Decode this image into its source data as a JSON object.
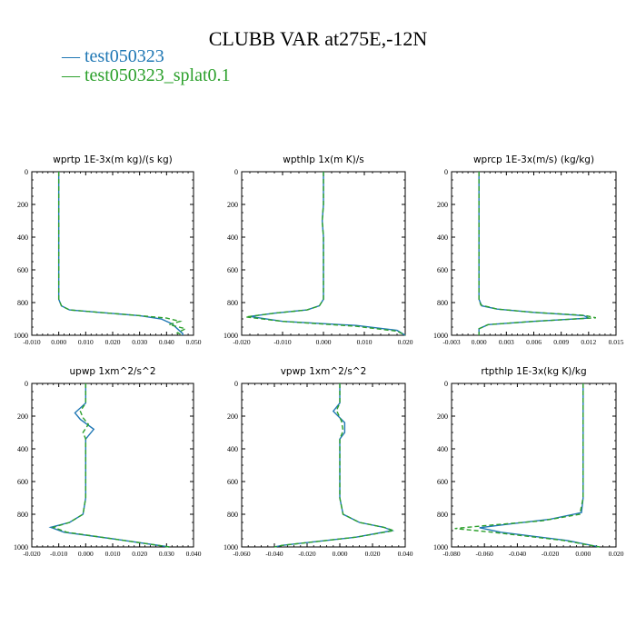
{
  "header": {
    "title": "CLUBB VAR at275E,-12N"
  },
  "legend": [
    {
      "label": "test050323",
      "color": "#1f77b4",
      "dash": "solid"
    },
    {
      "label": "test050323_splat0.1",
      "color": "#2ca02c",
      "dash": "dashed"
    }
  ],
  "chart_data": [
    {
      "type": "line",
      "title": "wprtp  1E-3x(m kg)/(s kg)",
      "xlim": [
        -0.01,
        0.05
      ],
      "xticks": [
        "-0.010",
        "0.000",
        "0.010",
        "0.020",
        "0.030",
        "0.040",
        "0.050"
      ],
      "ylim": [
        1000,
        0
      ],
      "yticks": [
        "0",
        "200",
        "400",
        "600",
        "800",
        "1000"
      ],
      "series": [
        {
          "name": "test050323",
          "points": [
            [
              0,
              0
            ],
            [
              0,
              300
            ],
            [
              0,
              600
            ],
            [
              0,
              780
            ],
            [
              0.001,
              820
            ],
            [
              0.004,
              845
            ],
            [
              0.015,
              860
            ],
            [
              0.03,
              880
            ],
            [
              0.038,
              900
            ],
            [
              0.042,
              930
            ],
            [
              0.044,
              960
            ],
            [
              0.046,
              990
            ],
            [
              0.046,
              1000
            ]
          ]
        },
        {
          "name": "test050323_splat0.1",
          "points": [
            [
              0,
              0
            ],
            [
              0,
              300
            ],
            [
              0,
              600
            ],
            [
              0,
              780
            ],
            [
              0.001,
              820
            ],
            [
              0.004,
              845
            ],
            [
              0.015,
              860
            ],
            [
              0.03,
              880
            ],
            [
              0.04,
              895
            ],
            [
              0.045,
              915
            ],
            [
              0.041,
              935
            ],
            [
              0.047,
              960
            ],
            [
              0.044,
              985
            ],
            [
              0.046,
              1000
            ]
          ]
        }
      ]
    },
    {
      "type": "line",
      "title": "wpthlp  1x(m K)/s",
      "xlim": [
        -0.02,
        0.02
      ],
      "xticks": [
        "-0.020",
        "-0.010",
        "0.000",
        "0.010",
        "0.020"
      ],
      "ylim": [
        1000,
        0
      ],
      "yticks": [
        "0",
        "200",
        "400",
        "600",
        "800",
        "1000"
      ],
      "series": [
        {
          "name": "test050323",
          "points": [
            [
              0,
              0
            ],
            [
              0,
              200
            ],
            [
              -0.0003,
              300
            ],
            [
              0,
              400
            ],
            [
              0,
              600
            ],
            [
              0,
              780
            ],
            [
              -0.001,
              820
            ],
            [
              -0.004,
              845
            ],
            [
              -0.012,
              865
            ],
            [
              -0.018,
              885
            ],
            [
              -0.01,
              915
            ],
            [
              0.008,
              940
            ],
            [
              0.018,
              970
            ],
            [
              0.02,
              1000
            ]
          ]
        },
        {
          "name": "test050323_splat0.1",
          "points": [
            [
              0,
              0
            ],
            [
              0,
              200
            ],
            [
              -0.0003,
              300
            ],
            [
              0,
              400
            ],
            [
              0,
              600
            ],
            [
              0,
              780
            ],
            [
              -0.001,
              820
            ],
            [
              -0.004,
              845
            ],
            [
              -0.012,
              865
            ],
            [
              -0.019,
              888
            ],
            [
              -0.01,
              915
            ],
            [
              0.008,
              945
            ],
            [
              0.018,
              975
            ],
            [
              0.02,
              1000
            ]
          ]
        }
      ]
    },
    {
      "type": "line",
      "title": "wprcp  1E-3x(m/s) (kg/kg)",
      "xlim": [
        -0.003,
        0.015
      ],
      "xticks": [
        "-0.003",
        "0.000",
        "0.003",
        "0.006",
        "0.009",
        "0.012",
        "0.015"
      ],
      "ylim": [
        1000,
        0
      ],
      "yticks": [
        "0",
        "200",
        "400",
        "600",
        "800",
        "1000"
      ],
      "series": [
        {
          "name": "test050323",
          "points": [
            [
              0,
              0
            ],
            [
              0,
              400
            ],
            [
              0,
              780
            ],
            [
              0.0003,
              820
            ],
            [
              0.002,
              840
            ],
            [
              0.006,
              860
            ],
            [
              0.0115,
              880
            ],
            [
              0.012,
              895
            ],
            [
              0.006,
              915
            ],
            [
              0.001,
              935
            ],
            [
              0,
              960
            ],
            [
              0,
              1000
            ]
          ]
        },
        {
          "name": "test050323_splat0.1",
          "points": [
            [
              0,
              0
            ],
            [
              0,
              400
            ],
            [
              0,
              780
            ],
            [
              0.0002,
              815
            ],
            [
              0.002,
              840
            ],
            [
              0.006,
              860
            ],
            [
              0.0115,
              878
            ],
            [
              0.0128,
              893
            ],
            [
              0.006,
              915
            ],
            [
              0.001,
              935
            ],
            [
              0,
              960
            ],
            [
              0,
              1000
            ]
          ]
        }
      ]
    },
    {
      "type": "line",
      "title": "upwp  1xm^2/s^2",
      "xlim": [
        -0.02,
        0.04
      ],
      "xticks": [
        "-0.020",
        "-0.010",
        "0.000",
        "0.010",
        "0.020",
        "0.030",
        "0.040"
      ],
      "ylim": [
        1000,
        0
      ],
      "yticks": [
        "0",
        "200",
        "400",
        "600",
        "800",
        "1000"
      ],
      "series": [
        {
          "name": "test050323",
          "points": [
            [
              0,
              0
            ],
            [
              0,
              120
            ],
            [
              -0.004,
              180
            ],
            [
              -0.002,
              220
            ],
            [
              0.003,
              280
            ],
            [
              0,
              340
            ],
            [
              0,
              500
            ],
            [
              0,
              700
            ],
            [
              -0.001,
              800
            ],
            [
              -0.006,
              850
            ],
            [
              -0.013,
              880
            ],
            [
              -0.008,
              910
            ],
            [
              0.01,
              950
            ],
            [
              0.031,
              1000
            ]
          ]
        },
        {
          "name": "test050323_splat0.1",
          "points": [
            [
              0,
              0
            ],
            [
              0,
              120
            ],
            [
              -0.002,
              170
            ],
            [
              -0.001,
              210
            ],
            [
              0.001,
              250
            ],
            [
              -0.001,
              300
            ],
            [
              0,
              340
            ],
            [
              0,
              500
            ],
            [
              0,
              700
            ],
            [
              -0.001,
              800
            ],
            [
              -0.006,
              850
            ],
            [
              -0.012,
              880
            ],
            [
              -0.007,
              910
            ],
            [
              0.01,
              950
            ],
            [
              0.031,
              1000
            ]
          ]
        }
      ]
    },
    {
      "type": "line",
      "title": "vpwp  1xm^2/s^2",
      "xlim": [
        -0.06,
        0.04
      ],
      "xticks": [
        "-0.060",
        "-0.040",
        "-0.020",
        "0.000",
        "0.020",
        "0.040"
      ],
      "ylim": [
        1000,
        0
      ],
      "yticks": [
        "0",
        "200",
        "400",
        "600",
        "800",
        "1000"
      ],
      "series": [
        {
          "name": "test050323",
          "points": [
            [
              0,
              0
            ],
            [
              0,
              120
            ],
            [
              -0.004,
              170
            ],
            [
              0.003,
              240
            ],
            [
              0.003,
              300
            ],
            [
              0,
              340
            ],
            [
              0,
              500
            ],
            [
              0,
              700
            ],
            [
              0.002,
              800
            ],
            [
              0.012,
              850
            ],
            [
              0.027,
              880
            ],
            [
              0.032,
              900
            ],
            [
              0.01,
              940
            ],
            [
              -0.035,
              990
            ],
            [
              -0.04,
              1000
            ]
          ]
        },
        {
          "name": "test050323_splat0.1",
          "points": [
            [
              0,
              0
            ],
            [
              0,
              120
            ],
            [
              -0.002,
              165
            ],
            [
              0.001,
              230
            ],
            [
              0.002,
              290
            ],
            [
              0,
              340
            ],
            [
              0,
              500
            ],
            [
              0,
              700
            ],
            [
              0.002,
              800
            ],
            [
              0.012,
              850
            ],
            [
              0.027,
              880
            ],
            [
              0.033,
              900
            ],
            [
              0.01,
              940
            ],
            [
              -0.035,
              990
            ],
            [
              -0.04,
              1000
            ]
          ]
        }
      ]
    },
    {
      "type": "line",
      "title": "rtpthlp  1E-3x(kg K)/kg",
      "xlim": [
        -0.08,
        0.02
      ],
      "xticks": [
        "-0.080",
        "-0.060",
        "-0.040",
        "-0.020",
        "0.000",
        "0.020"
      ],
      "ylim": [
        1000,
        0
      ],
      "yticks": [
        "0",
        "200",
        "400",
        "600",
        "800",
        "1000"
      ],
      "series": [
        {
          "name": "test050323",
          "points": [
            [
              0,
              0
            ],
            [
              0,
              400
            ],
            [
              0,
              700
            ],
            [
              -0.001,
              790
            ],
            [
              -0.02,
              830
            ],
            [
              -0.045,
              860
            ],
            [
              -0.063,
              882
            ],
            [
              -0.05,
              910
            ],
            [
              -0.01,
              960
            ],
            [
              0.01,
              1000
            ]
          ]
        },
        {
          "name": "test050323_splat0.1",
          "points": [
            [
              0,
              0
            ],
            [
              0,
              400
            ],
            [
              0,
              700
            ],
            [
              -0.002,
              800
            ],
            [
              -0.025,
              840
            ],
            [
              -0.06,
              870
            ],
            [
              -0.078,
              887
            ],
            [
              -0.055,
              910
            ],
            [
              -0.012,
              960
            ],
            [
              0.01,
              1000
            ]
          ]
        }
      ]
    }
  ]
}
